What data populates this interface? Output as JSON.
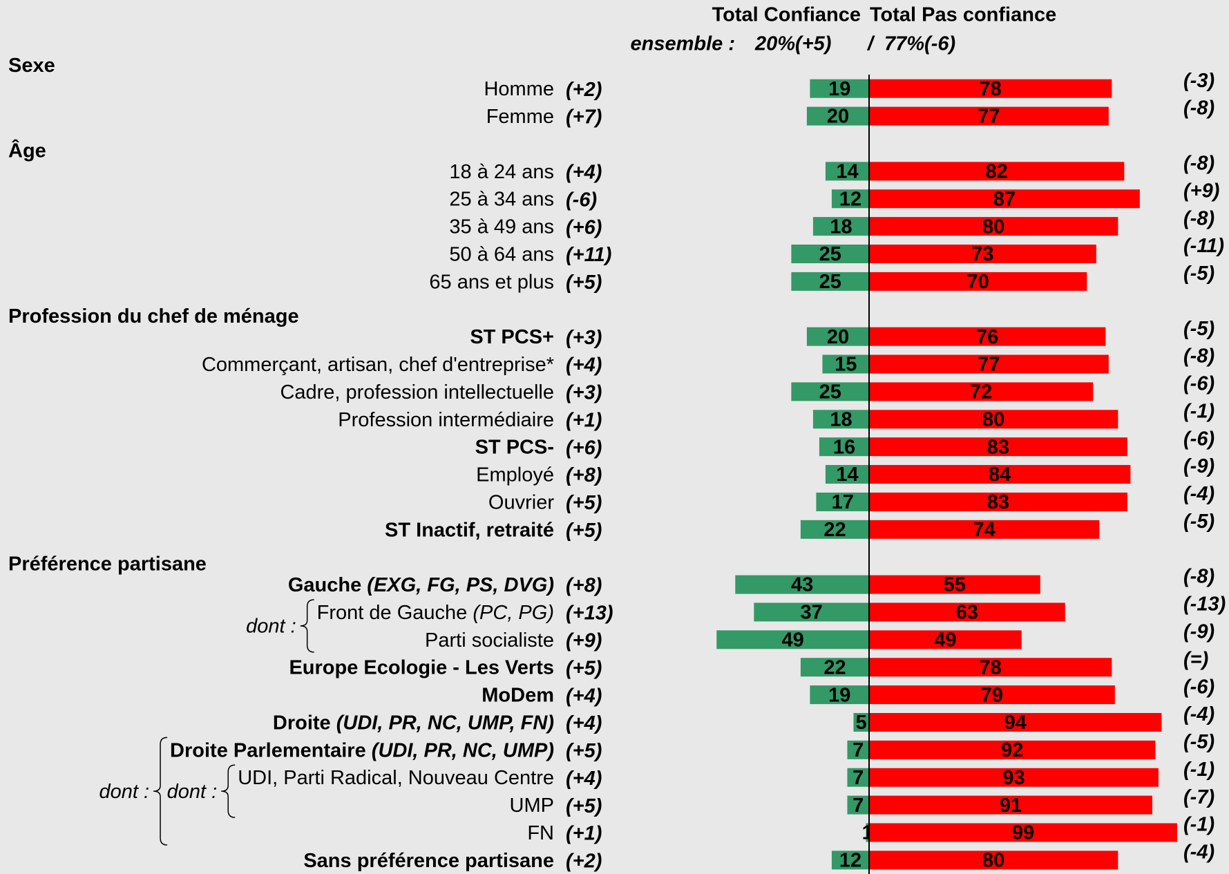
{
  "chart_data": {
    "type": "diverging-bar",
    "series": [
      {
        "name": "Total Confiance",
        "color": "#339966",
        "direction": "left",
        "values": [
          19,
          20,
          14,
          12,
          18,
          25,
          25,
          20,
          15,
          25,
          18,
          16,
          14,
          17,
          22,
          43,
          37,
          49,
          22,
          19,
          5,
          7,
          7,
          7,
          1,
          12
        ],
        "change_labels": [
          "(+2)",
          "(+7)",
          "(+4)",
          "(-6)",
          "(+6)",
          "(+11)",
          "(+5)",
          "(+3)",
          "(+4)",
          "(+3)",
          "(+1)",
          "(+6)",
          "(+8)",
          "(+5)",
          "(+5)",
          "(+8)",
          "(+13)",
          "(+9)",
          "(+5)",
          "(+4)",
          "(+4)",
          "(+5)",
          "(+4)",
          "(+5)",
          "(+1)",
          "(+2)"
        ]
      },
      {
        "name": "Total Pas confiance",
        "color": "#ff0000",
        "direction": "right",
        "values": [
          78,
          77,
          82,
          87,
          80,
          73,
          70,
          76,
          77,
          72,
          80,
          83,
          84,
          83,
          74,
          55,
          63,
          49,
          78,
          79,
          94,
          92,
          93,
          91,
          99,
          80
        ],
        "change_labels": [
          "(-3)",
          "(-8)",
          "(-8)",
          "(+9)",
          "(-8)",
          "(-11)",
          "(-5)",
          "(-5)",
          "(-8)",
          "(-6)",
          "(-1)",
          "(-6)",
          "(-9)",
          "(-4)",
          "(-5)",
          "(-8)",
          "(-13)",
          "(-9)",
          "(=)",
          "(-6)",
          "(-4)",
          "(-5)",
          "(-1)",
          "(-7)",
          "(-1)",
          "(-4)"
        ]
      }
    ],
    "overall_label": "ensemble :",
    "overall": [
      {
        "value": 20,
        "label": "20%(+5)"
      },
      {
        "value": 77,
        "label": "77%(-6)"
      }
    ],
    "overall_separator": "/",
    "categories": [
      "Homme",
      "Femme",
      "18 à 24 ans",
      "25 à 34 ans",
      "35 à 49 ans",
      "50 à 64 ans",
      "65 ans et plus",
      "ST PCS+",
      "Commerçant, artisan, chef d'entreprise*",
      "Cadre, profession intellectuelle",
      "Profession intermédiaire",
      "ST PCS-",
      "Employé",
      "Ouvrier",
      "ST Inactif, retraité",
      "Gauche",
      "Front de Gauche",
      "Parti socialiste",
      "Europe Ecologie - Les Verts",
      "MoDem",
      "Droite",
      "Droite Parlementaire",
      "UDI, Parti Radical, Nouveau Centre",
      "UMP",
      "FN",
      "Sans préférence partisane"
    ],
    "qualifiers": [
      null,
      null,
      null,
      null,
      null,
      null,
      null,
      null,
      null,
      null,
      null,
      null,
      null,
      null,
      null,
      "(EXG, FG, PS, DVG)",
      "(PC, PG)",
      null,
      null,
      null,
      "(UDI, PR, NC, UMP, FN)",
      "(UDI, PR, NC, UMP)",
      null,
      null,
      null,
      null
    ],
    "bold": [
      false,
      false,
      false,
      false,
      false,
      false,
      false,
      true,
      false,
      false,
      false,
      true,
      false,
      false,
      true,
      true,
      false,
      false,
      true,
      true,
      true,
      true,
      false,
      false,
      false,
      true
    ],
    "sections": [
      {
        "title": "Sexe",
        "start": 0
      },
      {
        "title": "Âge",
        "start": 2
      },
      {
        "title": "Profession du chef de ménage",
        "start": 7
      },
      {
        "title": "Préférence partisane",
        "start": 15
      }
    ],
    "annotations": [
      {
        "text": "dont :",
        "from": 16,
        "to": 17
      },
      {
        "text": "dont :",
        "from": 22,
        "to": 23
      },
      {
        "text": "dont :",
        "from": 21,
        "to": 24
      }
    ]
  }
}
